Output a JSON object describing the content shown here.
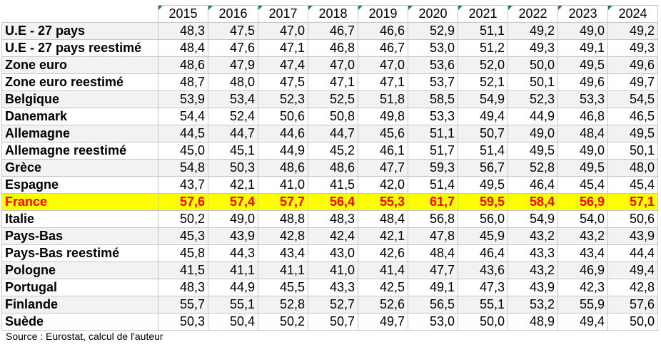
{
  "table": {
    "years": [
      "2015",
      "2016",
      "2017",
      "2018",
      "2019",
      "2020",
      "2021",
      "2022",
      "2023",
      "2024"
    ],
    "rows": [
      {
        "name": "U.E - 27 pays",
        "values": [
          "48,3",
          "47,5",
          "47,0",
          "46,7",
          "46,6",
          "52,9",
          "51,1",
          "49,2",
          "49,0",
          "49,2"
        ]
      },
      {
        "name": "U.E - 27 pays  reestimé",
        "values": [
          "48,4",
          "47,6",
          "47,1",
          "46,8",
          "46,7",
          "53,0",
          "51,2",
          "49,3",
          "49,1",
          "49,3"
        ]
      },
      {
        "name": "Zone euro",
        "values": [
          "48,6",
          "47,9",
          "47,4",
          "47,0",
          "47,0",
          "53,6",
          "52,0",
          "50,0",
          "49,5",
          "49,6"
        ]
      },
      {
        "name": "Zone euro  reestimé",
        "values": [
          "48,7",
          "48,0",
          "47,5",
          "47,1",
          "47,1",
          "53,7",
          "52,1",
          "50,1",
          "49,6",
          "49,7"
        ]
      },
      {
        "name": "Belgique",
        "values": [
          "53,9",
          "53,4",
          "52,3",
          "52,5",
          "51,8",
          "58,5",
          "54,9",
          "52,3",
          "53,3",
          "54,5"
        ]
      },
      {
        "name": "Danemark",
        "values": [
          "54,4",
          "52,4",
          "50,6",
          "50,8",
          "49,8",
          "53,3",
          "49,4",
          "44,9",
          "46,8",
          "46,5"
        ]
      },
      {
        "name": "Allemagne",
        "values": [
          "44,5",
          "44,7",
          "44,6",
          "44,7",
          "45,6",
          "51,1",
          "50,7",
          "49,0",
          "48,4",
          "49,5"
        ]
      },
      {
        "name": "Allemagne reestimé",
        "values": [
          "45,0",
          "45,1",
          "44,9",
          "45,2",
          "46,1",
          "51,7",
          "51,4",
          "49,5",
          "49,0",
          "50,1"
        ]
      },
      {
        "name": "Grèce",
        "values": [
          "54,8",
          "50,3",
          "48,6",
          "48,6",
          "47,7",
          "59,3",
          "56,7",
          "52,8",
          "49,5",
          "48,0"
        ]
      },
      {
        "name": "Espagne",
        "values": [
          "43,7",
          "42,1",
          "41,0",
          "41,5",
          "42,0",
          "51,4",
          "49,5",
          "46,4",
          "45,4",
          "45,4"
        ]
      },
      {
        "name": "France",
        "highlight": true,
        "values": [
          "57,6",
          "57,4",
          "57,7",
          "56,4",
          "55,3",
          "61,7",
          "59,5",
          "58,4",
          "56,9",
          "57,1"
        ]
      },
      {
        "name": "Italie",
        "values": [
          "50,2",
          "49,0",
          "48,8",
          "48,3",
          "48,4",
          "56,8",
          "56,0",
          "54,9",
          "54,0",
          "50,6"
        ]
      },
      {
        "name": "Pays-Bas",
        "values": [
          "45,3",
          "43,9",
          "42,8",
          "42,4",
          "42,1",
          "47,8",
          "45,9",
          "43,2",
          "43,2",
          "43,9"
        ]
      },
      {
        "name": "Pays-Bas reestimé",
        "values": [
          "45,8",
          "44,3",
          "43,4",
          "43,0",
          "42,6",
          "48,4",
          "46,4",
          "43,3",
          "43,4",
          "44,4"
        ]
      },
      {
        "name": "Pologne",
        "values": [
          "41,5",
          "41,1",
          "41,1",
          "41,0",
          "41,4",
          "47,7",
          "43,6",
          "43,2",
          "46,9",
          "49,4"
        ]
      },
      {
        "name": "Portugal",
        "values": [
          "48,3",
          "44,9",
          "45,5",
          "43,3",
          "42,5",
          "49,1",
          "47,3",
          "43,9",
          "42,3",
          "42,8"
        ]
      },
      {
        "name": "Finlande",
        "values": [
          "55,7",
          "55,1",
          "52,8",
          "52,7",
          "52,6",
          "56,5",
          "55,1",
          "53,2",
          "55,9",
          "57,6"
        ]
      },
      {
        "name": "Suède",
        "values": [
          "50,3",
          "50,4",
          "50,2",
          "50,7",
          "49,7",
          "53,0",
          "50,0",
          "48,9",
          "49,4",
          "50,0"
        ]
      }
    ]
  },
  "source": "Source : Eurostat, calcul de l'auteur",
  "colors": {
    "highlight_bg": "#ffff00",
    "highlight_text": "#ff0000",
    "zebra": "#f2f2f2",
    "gridline": "#c6c6c6"
  }
}
